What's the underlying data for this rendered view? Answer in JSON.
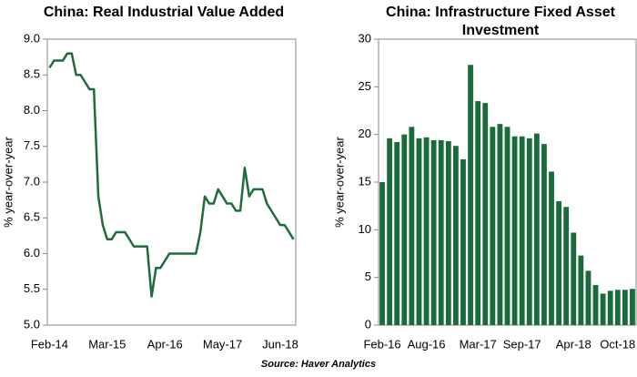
{
  "chart_data": [
    {
      "type": "line",
      "title": "China: Real Industrial Value Added",
      "ylabel": "% year-over-year",
      "color": "#1e6b3c",
      "categories": [
        "Feb-14",
        null,
        null,
        null,
        null,
        null,
        null,
        null,
        null,
        null,
        null,
        null,
        null,
        "Mar-15",
        null,
        null,
        null,
        null,
        null,
        null,
        null,
        null,
        null,
        null,
        null,
        null,
        "Apr-16",
        null,
        null,
        null,
        null,
        null,
        null,
        null,
        null,
        null,
        null,
        null,
        null,
        "May-17",
        null,
        null,
        null,
        null,
        null,
        null,
        null,
        null,
        null,
        null,
        null,
        null,
        "Jun-18",
        null,
        null,
        null
      ],
      "values": [
        8.6,
        8.7,
        8.7,
        8.7,
        8.8,
        8.8,
        8.5,
        8.5,
        8.4,
        8.3,
        8.3,
        6.8,
        6.4,
        6.2,
        6.2,
        6.3,
        6.3,
        6.3,
        6.2,
        6.1,
        6.1,
        6.1,
        6.1,
        5.4,
        5.8,
        5.8,
        5.9,
        6.0,
        6.0,
        6.0,
        6.0,
        6.0,
        6.0,
        6.0,
        6.3,
        6.8,
        6.7,
        6.7,
        6.9,
        6.8,
        6.7,
        6.7,
        6.6,
        6.6,
        7.2,
        6.8,
        6.9,
        6.9,
        6.9,
        6.7,
        6.6,
        6.5,
        6.4,
        6.4,
        6.3,
        6.2
      ],
      "ylim": [
        5.0,
        9.0
      ],
      "yticks": [
        {
          "value": 5.0,
          "label": "5.0"
        },
        5.5,
        {
          "value": 6.0,
          "label": "6.0"
        },
        6.5,
        {
          "value": 7.0,
          "label": "7.0"
        },
        7.5,
        {
          "value": 8.0,
          "label": "8.0"
        },
        8.5,
        {
          "value": 9.0,
          "label": "9.0"
        }
      ]
    },
    {
      "type": "bar",
      "title": "China: Infrastructure Fixed Asset Investment",
      "ylabel": "% year-over-year",
      "color": "#1a6b3a",
      "categories": [
        "Feb-16",
        null,
        null,
        null,
        null,
        null,
        "Aug-16",
        null,
        null,
        null,
        null,
        null,
        null,
        "Mar-17",
        null,
        null,
        null,
        null,
        null,
        "Sep-17",
        null,
        null,
        null,
        null,
        null,
        null,
        "Apr-18",
        null,
        null,
        null,
        null,
        null,
        "Oct-18",
        null,
        null
      ],
      "values": [
        15.0,
        19.6,
        19.2,
        20.0,
        20.8,
        19.6,
        19.7,
        19.4,
        19.4,
        19.3,
        18.8,
        17.4,
        27.3,
        23.5,
        23.3,
        20.8,
        21.1,
        20.8,
        19.8,
        19.8,
        19.6,
        20.1,
        19.0,
        16.1,
        13.0,
        12.4,
        9.7,
        7.3,
        5.7,
        4.2,
        3.3,
        3.6,
        3.7,
        3.7,
        3.8
      ],
      "ylim": [
        0,
        30
      ],
      "yticks": [
        0,
        5,
        10,
        15,
        20,
        25,
        30
      ]
    }
  ],
  "source": "Source: Haver Analytics"
}
